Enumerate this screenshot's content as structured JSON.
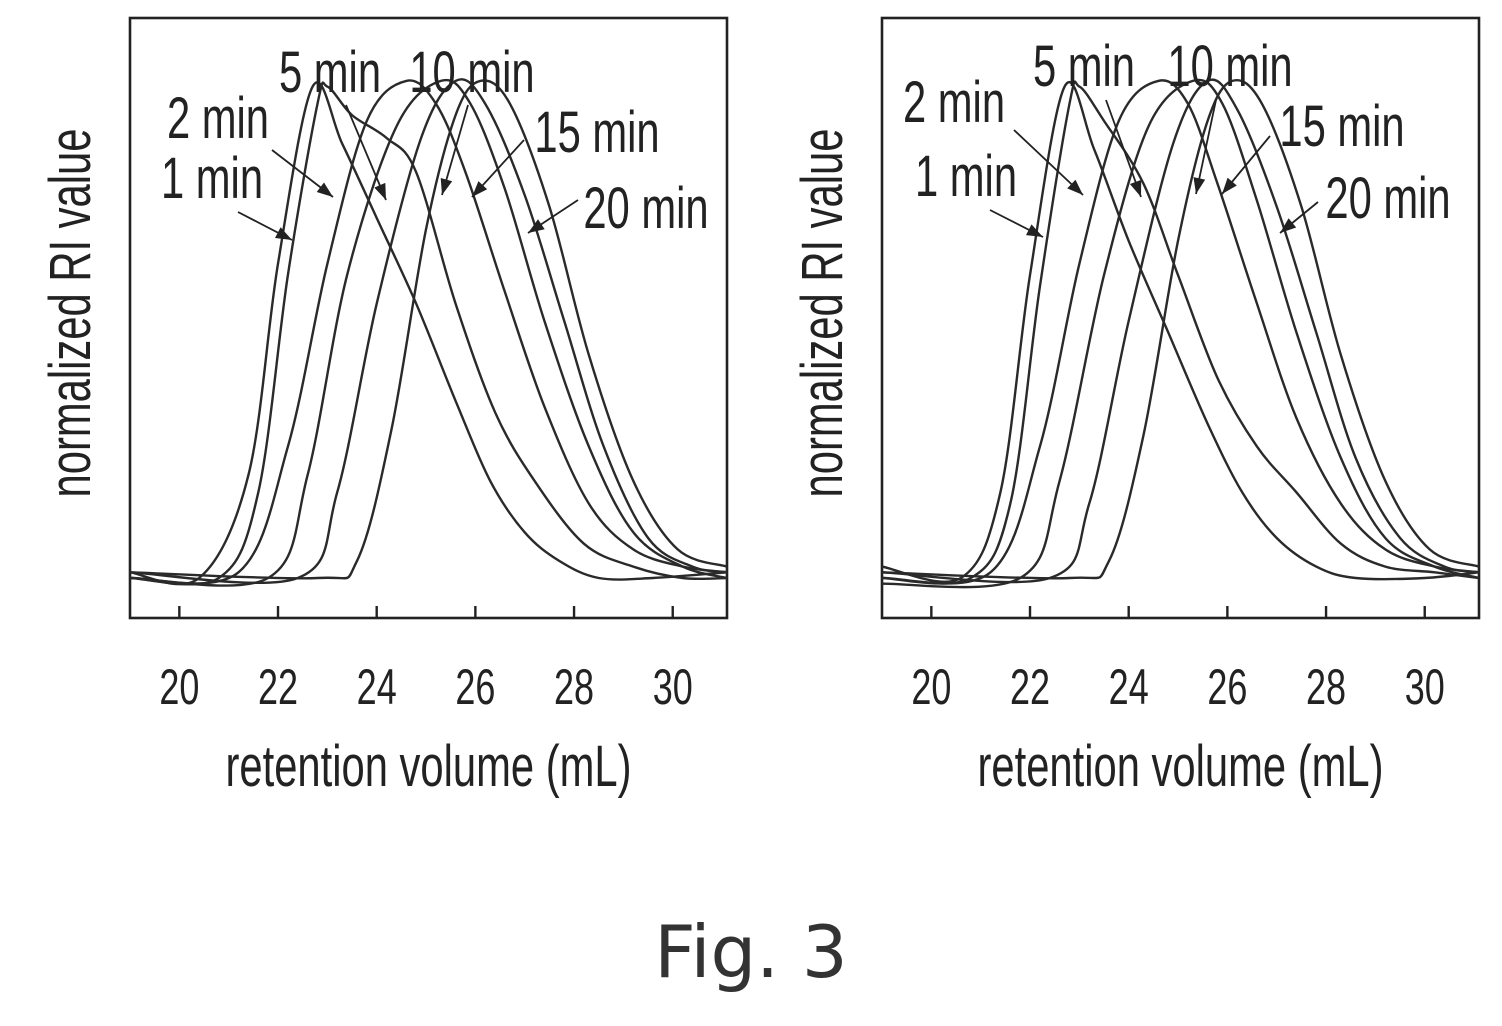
{
  "caption": "Fig. 3",
  "chart_data": [
    {
      "type": "line",
      "xlabel": "retention volume (mL)",
      "ylabel": "normalized RI value",
      "xlim": [
        19,
        31.1
      ],
      "ylim": [
        0,
        1.05
      ],
      "xticks": [
        20,
        22,
        24,
        26,
        28,
        30
      ],
      "yticks_shown": false,
      "series": [
        {
          "name": "1 min",
          "points": [
            [
              19,
              0.08
            ],
            [
              20.4,
              0.07
            ],
            [
              21.4,
              0.25
            ],
            [
              22.0,
              0.62
            ],
            [
              22.7,
              0.93
            ],
            [
              23.3,
              0.83
            ],
            [
              24.0,
              0.7
            ],
            [
              24.8,
              0.55
            ],
            [
              25.6,
              0.38
            ],
            [
              26.3,
              0.24
            ],
            [
              27.0,
              0.15
            ],
            [
              27.7,
              0.1
            ],
            [
              28.5,
              0.07
            ],
            [
              29.6,
              0.07
            ],
            [
              31.1,
              0.08
            ]
          ]
        },
        {
          "name": "2 min",
          "points": [
            [
              19,
              0.07
            ],
            [
              20.8,
              0.07
            ],
            [
              21.6,
              0.22
            ],
            [
              22.2,
              0.6
            ],
            [
              22.8,
              0.9
            ],
            [
              23.0,
              0.93
            ],
            [
              23.5,
              0.88
            ],
            [
              24.2,
              0.84
            ],
            [
              24.8,
              0.78
            ],
            [
              25.6,
              0.55
            ],
            [
              26.4,
              0.36
            ],
            [
              27.2,
              0.24
            ],
            [
              28.2,
              0.13
            ],
            [
              29.2,
              0.09
            ],
            [
              30.2,
              0.07
            ],
            [
              31.1,
              0.07
            ]
          ]
        },
        {
          "name": "5 min",
          "points": [
            [
              19,
              0.07
            ],
            [
              21.2,
              0.08
            ],
            [
              22.2,
              0.3
            ],
            [
              23.0,
              0.62
            ],
            [
              23.8,
              0.87
            ],
            [
              24.6,
              0.94
            ],
            [
              25.2,
              0.9
            ],
            [
              25.8,
              0.78
            ],
            [
              26.6,
              0.57
            ],
            [
              27.4,
              0.37
            ],
            [
              28.3,
              0.2
            ],
            [
              29.2,
              0.12
            ],
            [
              30.2,
              0.09
            ],
            [
              31.1,
              0.08
            ]
          ]
        },
        {
          "name": "10 min",
          "points": [
            [
              19,
              0.07
            ],
            [
              21.8,
              0.07
            ],
            [
              22.6,
              0.25
            ],
            [
              23.4,
              0.6
            ],
            [
              24.4,
              0.86
            ],
            [
              25.3,
              0.94
            ],
            [
              25.9,
              0.9
            ],
            [
              26.6,
              0.75
            ],
            [
              27.4,
              0.52
            ],
            [
              28.3,
              0.3
            ],
            [
              29.2,
              0.15
            ],
            [
              30.2,
              0.09
            ],
            [
              31.1,
              0.07
            ]
          ]
        },
        {
          "name": "15 min",
          "points": [
            [
              19,
              0.08
            ],
            [
              22.4,
              0.07
            ],
            [
              23.2,
              0.22
            ],
            [
              24.0,
              0.55
            ],
            [
              24.9,
              0.84
            ],
            [
              25.6,
              0.94
            ],
            [
              26.2,
              0.9
            ],
            [
              27.0,
              0.74
            ],
            [
              27.8,
              0.52
            ],
            [
              28.6,
              0.3
            ],
            [
              29.5,
              0.14
            ],
            [
              30.4,
              0.09
            ],
            [
              31.1,
              0.08
            ]
          ]
        },
        {
          "name": "20 min",
          "points": [
            [
              19,
              0.08
            ],
            [
              22.8,
              0.07
            ],
            [
              23.6,
              0.1
            ],
            [
              24.3,
              0.33
            ],
            [
              25.0,
              0.68
            ],
            [
              25.6,
              0.88
            ],
            [
              26.1,
              0.94
            ],
            [
              26.7,
              0.9
            ],
            [
              27.5,
              0.72
            ],
            [
              28.3,
              0.46
            ],
            [
              29.2,
              0.24
            ],
            [
              30.1,
              0.12
            ],
            [
              31.1,
              0.09
            ]
          ]
        }
      ],
      "annotations": [
        {
          "label": "1 min",
          "series": "1 min"
        },
        {
          "label": "2 min",
          "series": "2 min"
        },
        {
          "label": "5 min",
          "series": "5 min"
        },
        {
          "label": "10 min",
          "series": "10 min"
        },
        {
          "label": "15 min",
          "series": "15 min"
        },
        {
          "label": "20 min",
          "series": "20 min"
        }
      ]
    },
    {
      "type": "line",
      "xlabel": "retention volume (mL)",
      "ylabel": "normalized RI value",
      "xlim": [
        19,
        31.1
      ],
      "ylim": [
        0,
        1.05
      ],
      "xticks": [
        20,
        22,
        24,
        26,
        28,
        30
      ],
      "yticks_shown": false,
      "series": [
        {
          "name": "1 min",
          "points": [
            [
              19,
              0.09
            ],
            [
              20.6,
              0.07
            ],
            [
              21.4,
              0.22
            ],
            [
              22.0,
              0.6
            ],
            [
              22.7,
              0.93
            ],
            [
              23.3,
              0.82
            ],
            [
              24.0,
              0.66
            ],
            [
              24.8,
              0.5
            ],
            [
              25.6,
              0.34
            ],
            [
              26.3,
              0.22
            ],
            [
              27.0,
              0.14
            ],
            [
              27.8,
              0.09
            ],
            [
              28.6,
              0.07
            ],
            [
              30.0,
              0.07
            ],
            [
              31.1,
              0.08
            ]
          ]
        },
        {
          "name": "2 min",
          "points": [
            [
              19,
              0.07
            ],
            [
              20.8,
              0.07
            ],
            [
              21.6,
              0.2
            ],
            [
              22.2,
              0.58
            ],
            [
              22.8,
              0.9
            ],
            [
              23.0,
              0.93
            ],
            [
              23.5,
              0.87
            ],
            [
              24.3,
              0.76
            ],
            [
              25.0,
              0.6
            ],
            [
              25.8,
              0.42
            ],
            [
              26.6,
              0.3
            ],
            [
              27.4,
              0.22
            ],
            [
              28.3,
              0.13
            ],
            [
              29.2,
              0.09
            ],
            [
              30.2,
              0.08
            ],
            [
              31.1,
              0.07
            ]
          ]
        },
        {
          "name": "5 min",
          "points": [
            [
              19,
              0.07
            ],
            [
              21.2,
              0.08
            ],
            [
              22.2,
              0.3
            ],
            [
              23.0,
              0.62
            ],
            [
              23.8,
              0.87
            ],
            [
              24.6,
              0.94
            ],
            [
              25.2,
              0.9
            ],
            [
              25.8,
              0.76
            ],
            [
              26.6,
              0.55
            ],
            [
              27.4,
              0.35
            ],
            [
              28.3,
              0.2
            ],
            [
              29.2,
              0.12
            ],
            [
              30.2,
              0.09
            ],
            [
              31.1,
              0.08
            ]
          ]
        },
        {
          "name": "10 min",
          "points": [
            [
              19,
              0.06
            ],
            [
              21.8,
              0.07
            ],
            [
              22.6,
              0.24
            ],
            [
              23.5,
              0.6
            ],
            [
              24.4,
              0.86
            ],
            [
              25.3,
              0.94
            ],
            [
              25.9,
              0.9
            ],
            [
              26.6,
              0.73
            ],
            [
              27.4,
              0.5
            ],
            [
              28.3,
              0.28
            ],
            [
              29.2,
              0.14
            ],
            [
              30.2,
              0.09
            ],
            [
              31.1,
              0.07
            ]
          ]
        },
        {
          "name": "15 min",
          "points": [
            [
              19,
              0.08
            ],
            [
              22.4,
              0.07
            ],
            [
              23.2,
              0.2
            ],
            [
              24.0,
              0.52
            ],
            [
              24.9,
              0.83
            ],
            [
              25.6,
              0.94
            ],
            [
              26.2,
              0.89
            ],
            [
              27.0,
              0.72
            ],
            [
              27.8,
              0.5
            ],
            [
              28.6,
              0.28
            ],
            [
              29.5,
              0.14
            ],
            [
              30.4,
              0.09
            ],
            [
              31.1,
              0.08
            ]
          ]
        },
        {
          "name": "20 min",
          "points": [
            [
              19,
              0.08
            ],
            [
              22.8,
              0.07
            ],
            [
              23.6,
              0.1
            ],
            [
              24.3,
              0.32
            ],
            [
              25.0,
              0.66
            ],
            [
              25.6,
              0.87
            ],
            [
              26.1,
              0.94
            ],
            [
              26.7,
              0.9
            ],
            [
              27.5,
              0.72
            ],
            [
              28.3,
              0.46
            ],
            [
              29.2,
              0.24
            ],
            [
              30.1,
              0.12
            ],
            [
              31.1,
              0.09
            ]
          ]
        }
      ],
      "annotations": [
        {
          "label": "1 min",
          "series": "1 min"
        },
        {
          "label": "2 min",
          "series": "2 min"
        },
        {
          "label": "5 min",
          "series": "5 min"
        },
        {
          "label": "10 min",
          "series": "10 min"
        },
        {
          "label": "15 min",
          "series": "15 min"
        },
        {
          "label": "20 min",
          "series": "20 min"
        }
      ]
    }
  ]
}
